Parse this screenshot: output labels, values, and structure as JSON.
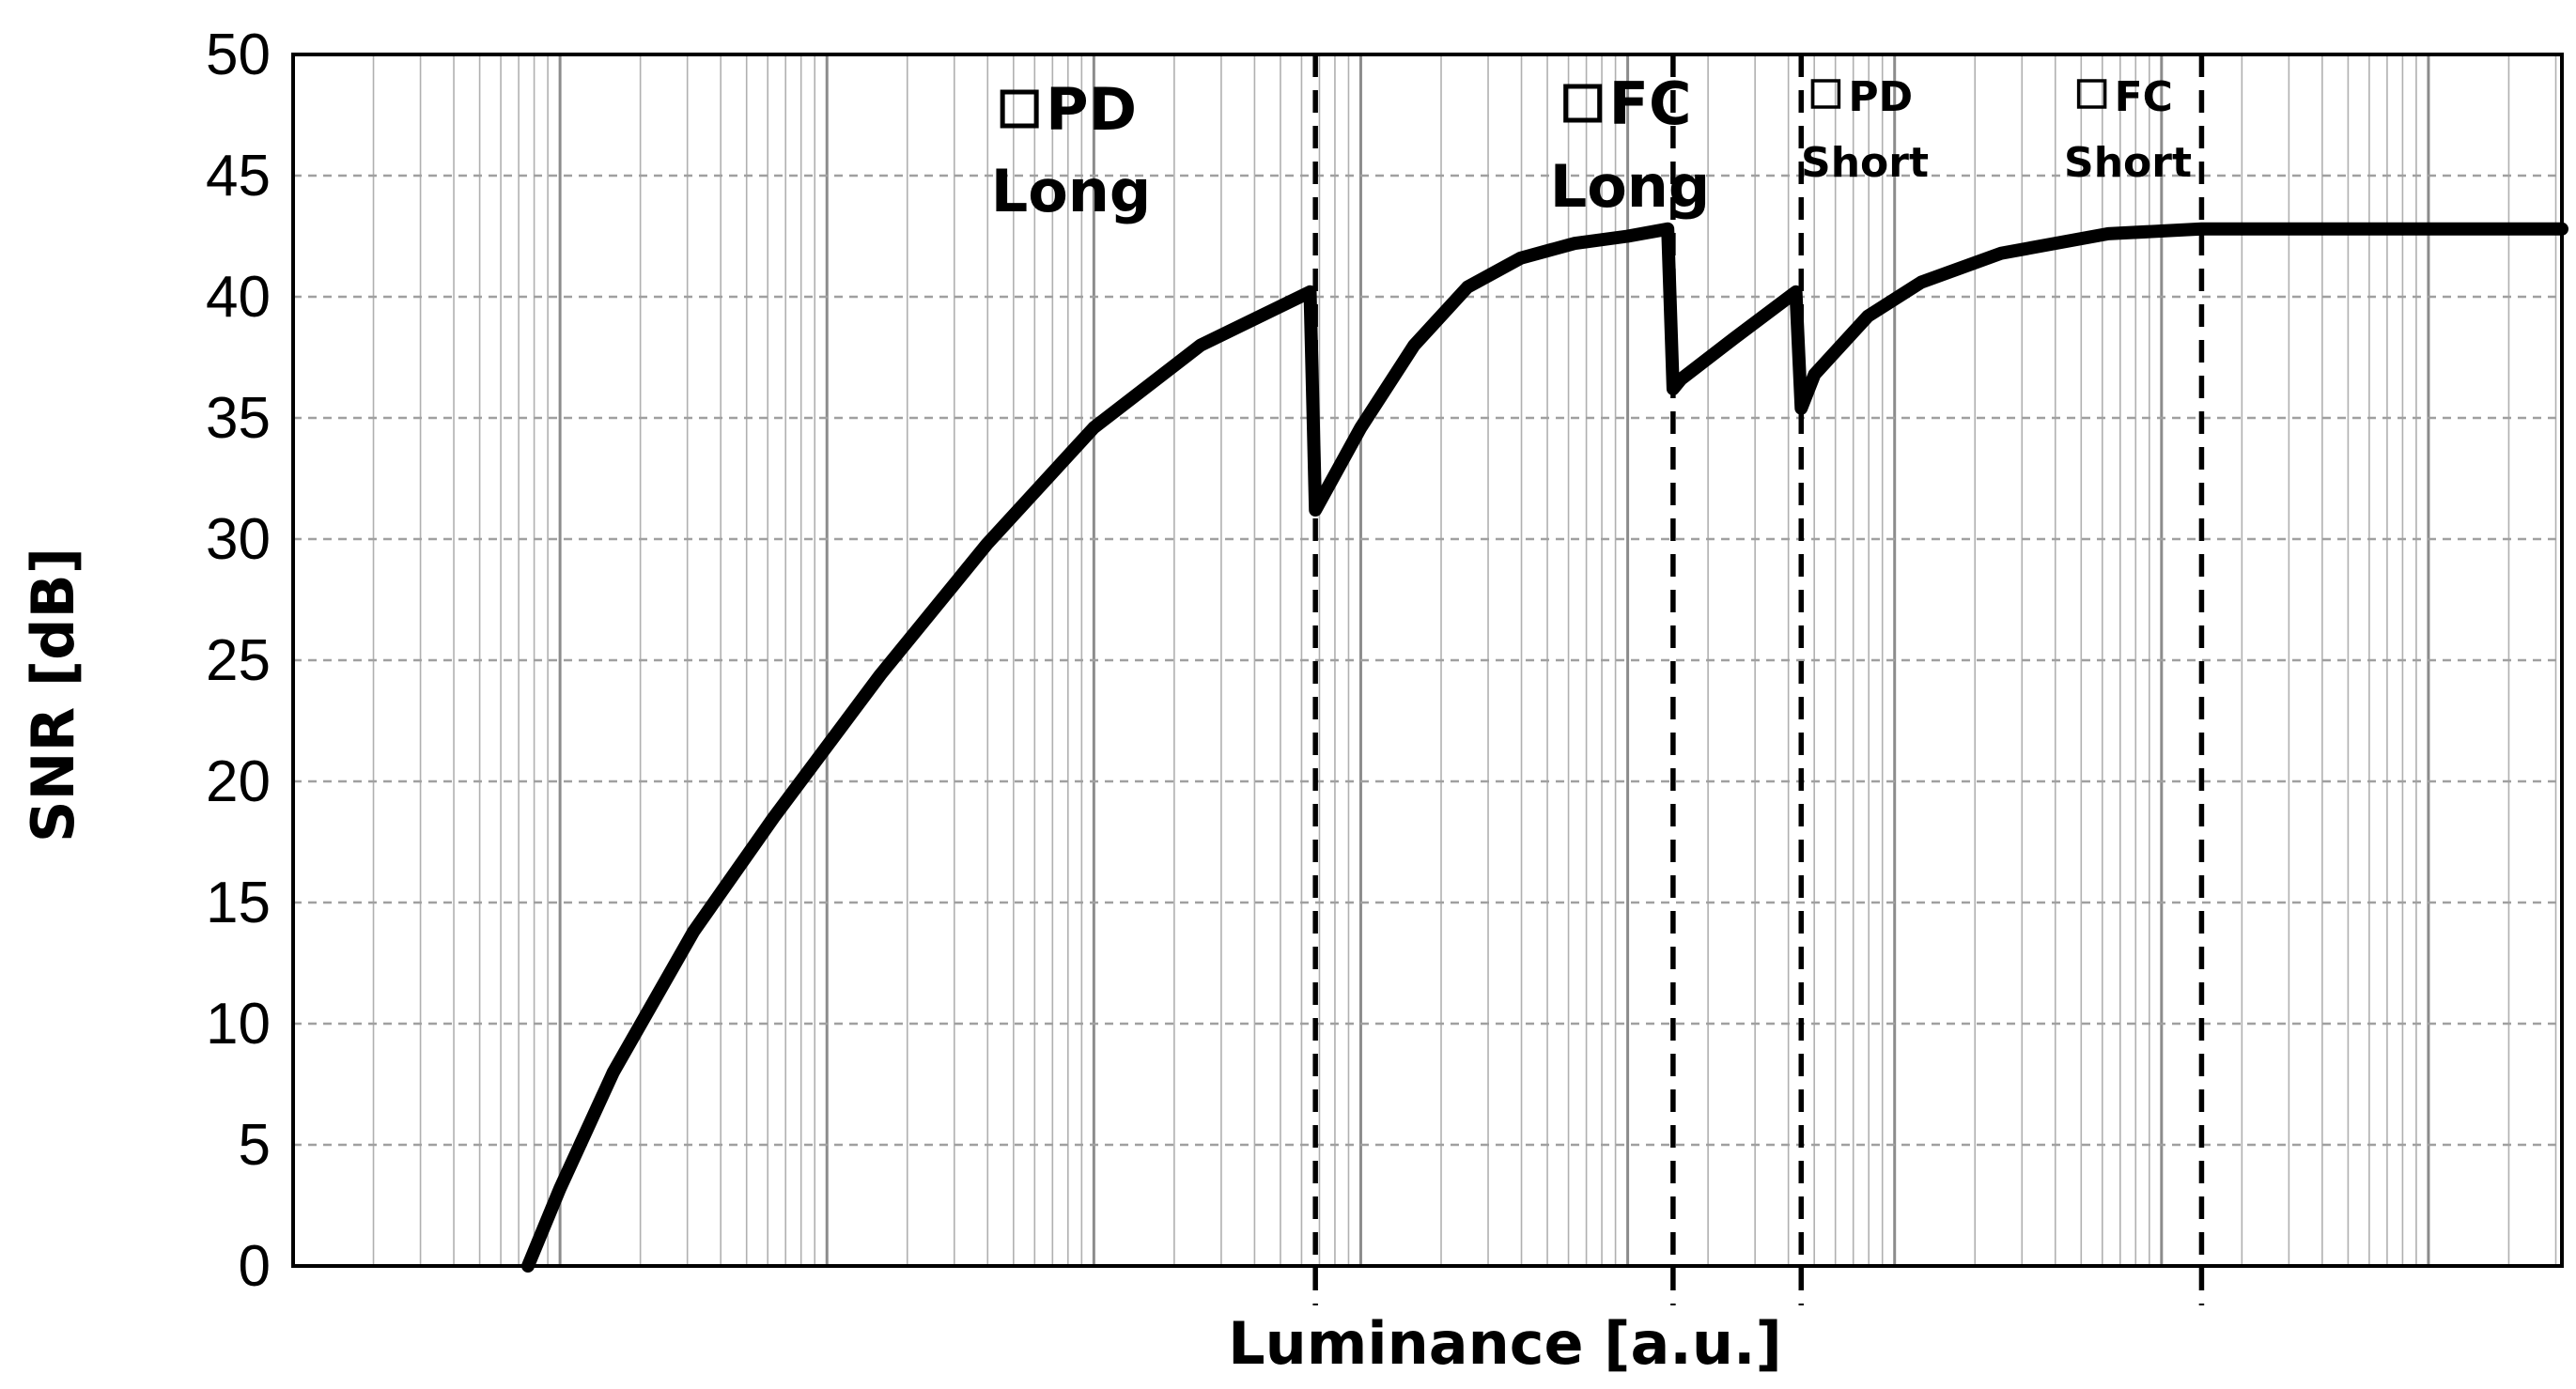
{
  "chart_data": {
    "type": "line",
    "title": "",
    "xlabel": "Luminance [a.u.]",
    "ylabel": "SNR [dB]",
    "x_scale": "log",
    "x_tick_labels": [],
    "ylim": [
      0,
      50
    ],
    "y_ticks": [
      0,
      5,
      10,
      15,
      20,
      25,
      30,
      35,
      40,
      45,
      50
    ],
    "grid": true,
    "line_color": "#000000",
    "grid_color": "#b0b0b0",
    "regions": [
      {
        "label": "PD\nLong",
        "boundary_decade": 3.83
      },
      {
        "label": "FC\nLong",
        "boundary_decade": 5.17
      },
      {
        "label": "PD\nShort",
        "boundary_decade": 5.65
      },
      {
        "label": "FC\nShort",
        "boundary_decade": 7.15
      }
    ],
    "series": [
      {
        "name": "",
        "x_decade": [
          0.88,
          1.0,
          1.2,
          1.5,
          1.8,
          2.2,
          2.6,
          3.0,
          3.4,
          3.81,
          3.83,
          4.0,
          4.2,
          4.4,
          4.6,
          4.8,
          5.0,
          5.15,
          5.17,
          5.2,
          5.4,
          5.63,
          5.65,
          5.7,
          5.9,
          6.1,
          6.4,
          6.8,
          7.15,
          8.0,
          8.5
        ],
        "values": [
          0.0,
          3.2,
          8.0,
          13.8,
          18.5,
          24.4,
          29.8,
          34.6,
          38.0,
          40.2,
          31.2,
          34.6,
          38.0,
          40.4,
          41.6,
          42.2,
          42.5,
          42.8,
          36.2,
          36.6,
          38.3,
          40.2,
          35.4,
          36.8,
          39.2,
          40.6,
          41.8,
          42.6,
          42.8,
          42.8,
          42.8
        ]
      }
    ]
  },
  "icons": {
    "region_marker": "square-outline-icon"
  }
}
